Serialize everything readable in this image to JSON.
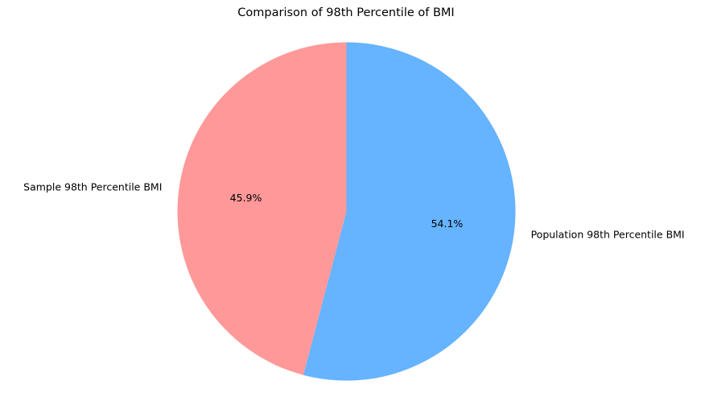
{
  "chart_data": {
    "type": "pie",
    "title": "Comparison of 98th Percentile of BMI",
    "slices": [
      {
        "label": "Sample 98th Percentile BMI",
        "percent": 45.9,
        "percent_label": "45.9%",
        "color": "#ff9999"
      },
      {
        "label": "Population 98th Percentile BMI",
        "percent": 54.1,
        "percent_label": "54.1%",
        "color": "#66b3ff"
      }
    ],
    "start_angle_deg": 90,
    "direction": "counterclockwise"
  }
}
